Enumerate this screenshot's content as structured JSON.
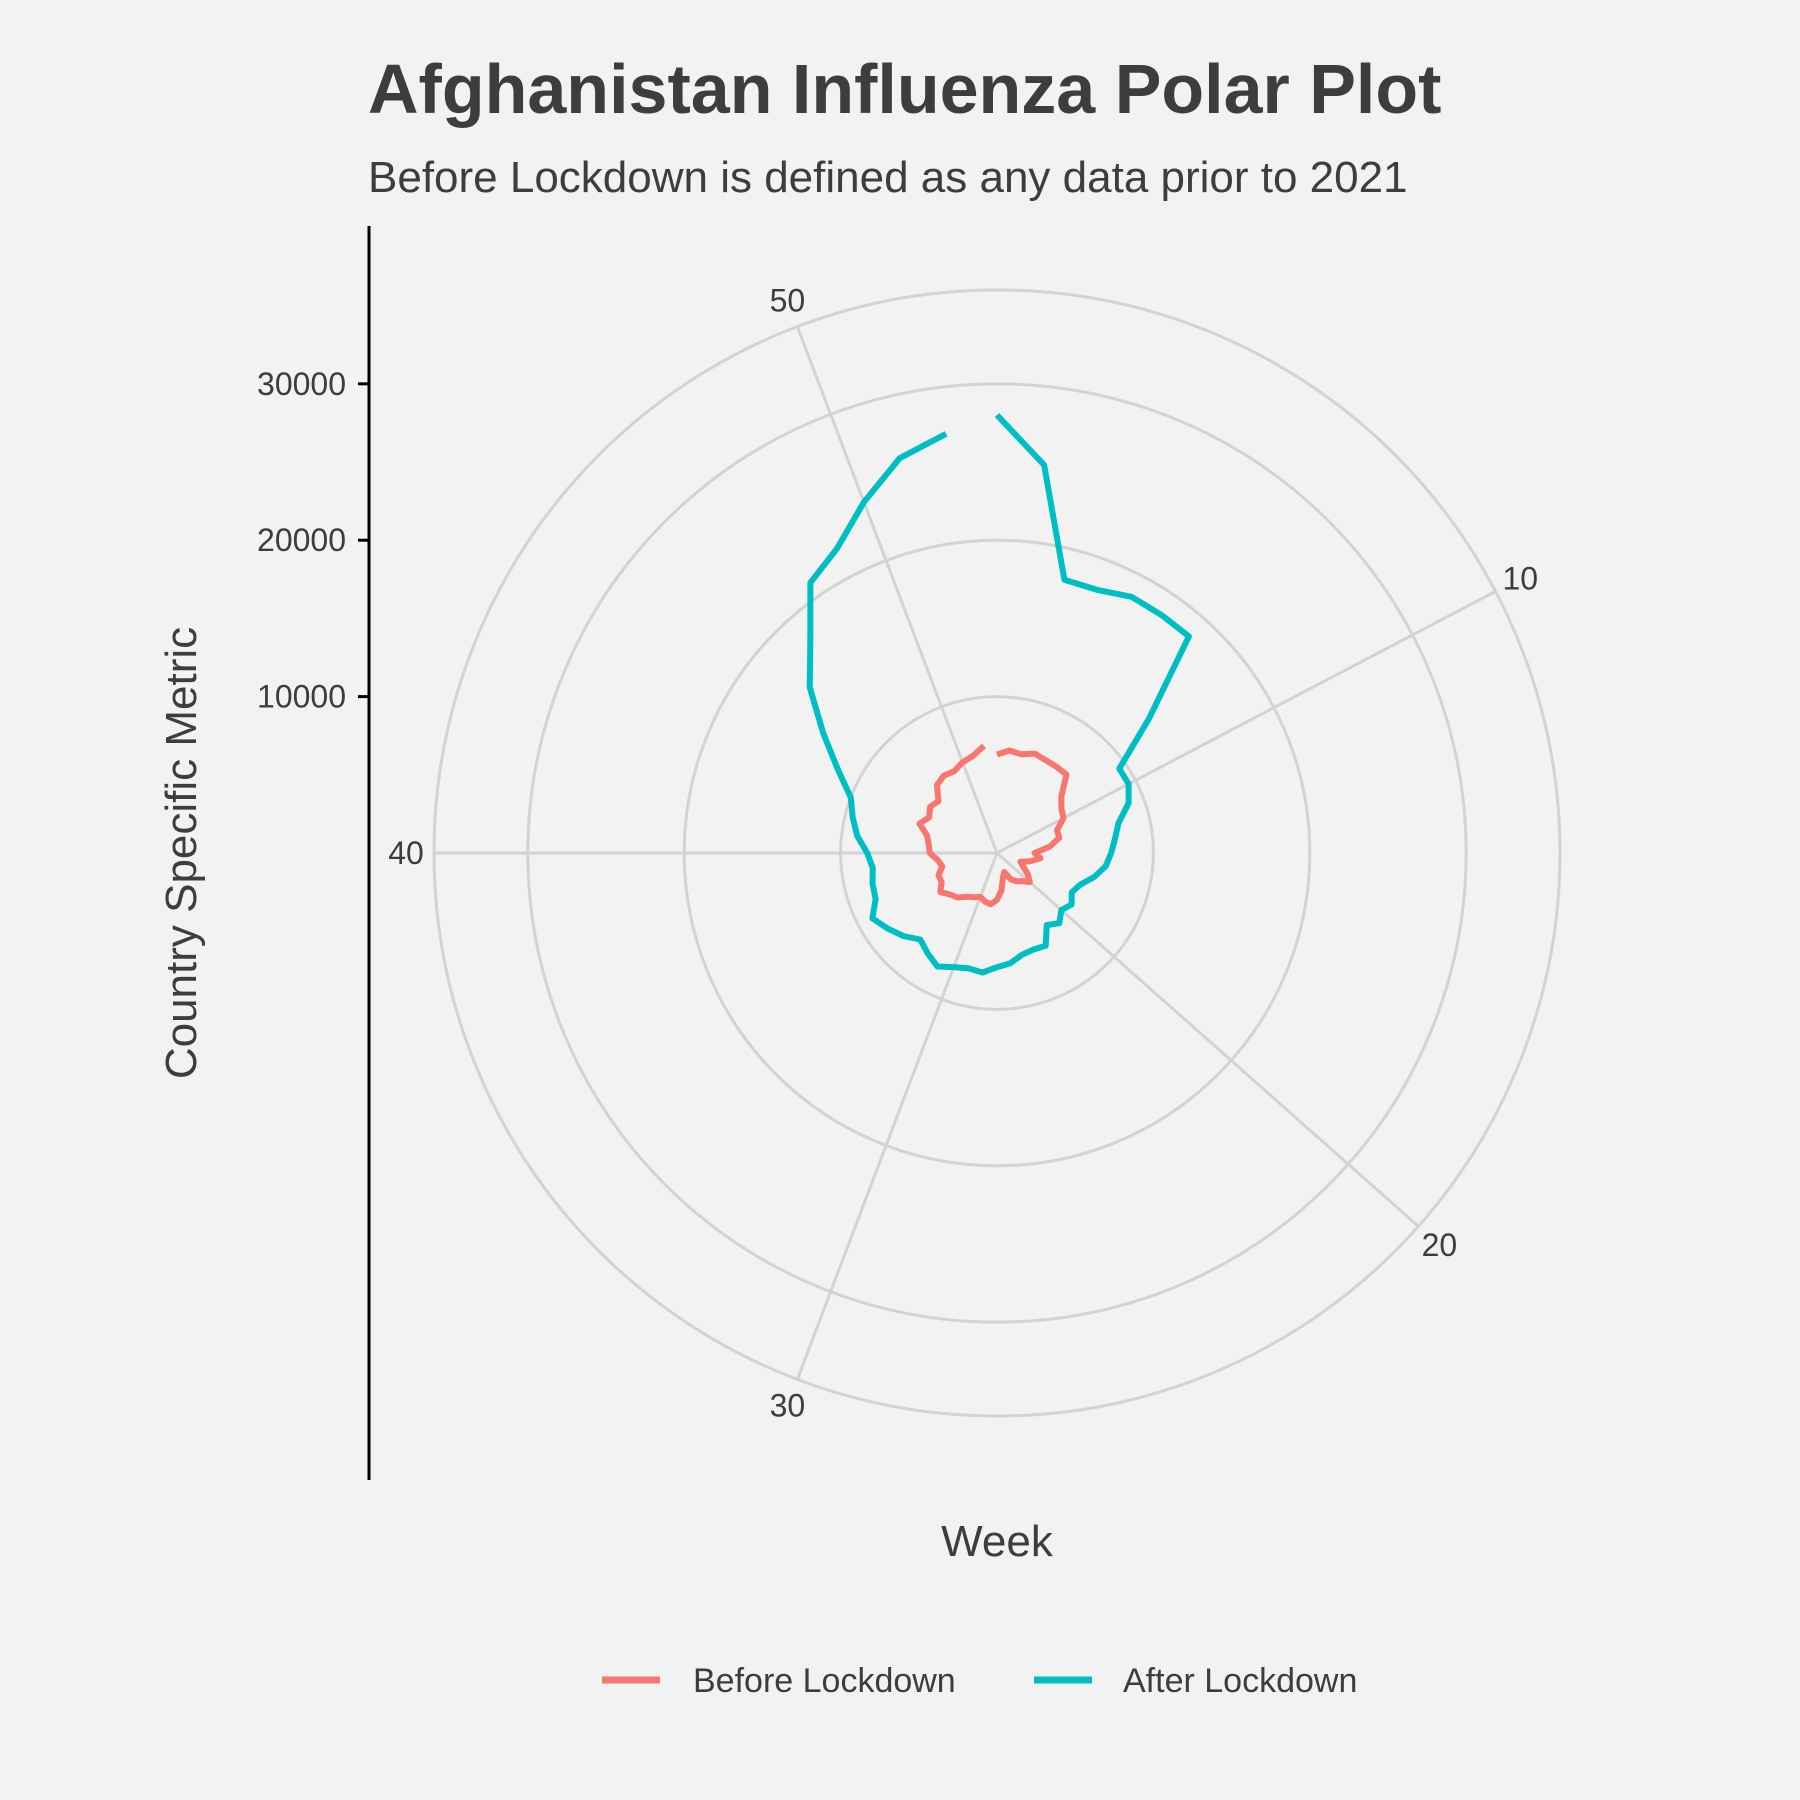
{
  "chart_data": {
    "type": "line",
    "coordinate_system": "polar",
    "title": "Afghanistan Influenza Polar Plot",
    "subtitle": "Before Lockdown is defined as any data prior to 2021",
    "xlabel": "Week",
    "ylabel": "Country Specific Metric",
    "xlim": [
      1,
      53
    ],
    "ylim": [
      0,
      36000
    ],
    "angular_ticks": [
      10,
      20,
      30,
      40,
      50
    ],
    "radial_ticks": [
      10000,
      20000,
      30000
    ],
    "grid": true,
    "legend_position": "bottom",
    "series": [
      {
        "name": "Before Lockdown",
        "color": "#f8766d",
        "x": [
          1,
          2,
          3,
          4,
          5,
          6,
          7,
          8,
          9,
          10,
          11,
          12,
          13,
          14,
          15,
          16,
          17,
          18,
          19,
          20,
          21,
          22,
          23,
          24,
          25,
          26,
          27,
          28,
          29,
          30,
          31,
          32,
          33,
          34,
          35,
          36,
          37,
          38,
          39,
          40,
          41,
          42,
          43,
          44,
          45,
          46,
          47,
          48,
          49,
          50,
          51,
          52
        ],
        "values": [
          6300,
          6600,
          6500,
          6800,
          6700,
          6700,
          6700,
          5500,
          5000,
          4800,
          4100,
          4100,
          3400,
          2400,
          2800,
          2200,
          1600,
          1900,
          2400,
          2800,
          2400,
          2200,
          1900,
          1300,
          1600,
          2400,
          3000,
          3300,
          3200,
          3000,
          3200,
          3400,
          3800,
          4000,
          4400,
          4000,
          4000,
          3600,
          3800,
          4300,
          4400,
          4600,
          5300,
          4900,
          5200,
          5000,
          5800,
          6000,
          5900,
          6200,
          6400,
          6900
        ]
      },
      {
        "name": "After Lockdown",
        "color": "#00bfc4",
        "x": [
          1,
          2,
          3,
          4,
          5,
          6,
          7,
          8,
          9,
          10,
          11,
          12,
          13,
          14,
          15,
          16,
          17,
          18,
          19,
          20,
          21,
          22,
          23,
          24,
          25,
          26,
          27,
          28,
          29,
          30,
          31,
          32,
          33,
          34,
          35,
          36,
          37,
          38,
          39,
          40,
          41,
          42,
          43,
          44,
          45,
          46,
          47,
          48,
          49,
          50,
          51,
          52
        ],
        "values": [
          28000,
          25000,
          18000,
          18000,
          18500,
          18500,
          18500,
          13000,
          9500,
          9500,
          9000,
          8000,
          7600,
          7300,
          7000,
          6400,
          5700,
          5400,
          5800,
          5500,
          6000,
          5600,
          6700,
          6600,
          6700,
          7100,
          7300,
          7700,
          7600,
          7800,
          8200,
          7800,
          7400,
          8000,
          8500,
          9000,
          8300,
          8200,
          8000,
          8300,
          9000,
          9500,
          10000,
          11500,
          13500,
          16000,
          18000,
          21000,
          22000,
          24000,
          26000,
          27000
        ]
      }
    ]
  }
}
